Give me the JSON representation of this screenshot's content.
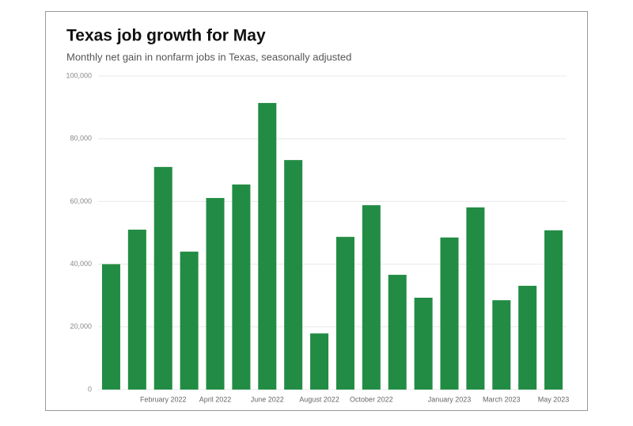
{
  "chart_data": {
    "type": "bar",
    "title": "Texas job growth for May",
    "subtitle": "Monthly net gain in nonfarm jobs in Texas, seasonally adjusted",
    "categories": [
      null,
      null,
      "February 2022",
      null,
      "April 2022",
      null,
      "June 2022",
      null,
      "August 2022",
      null,
      "October 2022",
      null,
      null,
      "January 2023",
      null,
      "March 2023",
      null,
      "May 2023"
    ],
    "values": [
      40000,
      51000,
      71000,
      44000,
      61100,
      65400,
      91400,
      73200,
      17900,
      48700,
      58800,
      36600,
      29300,
      48500,
      58100,
      28500,
      33100,
      50800
    ],
    "color": "#228c44",
    "ylim": [
      0,
      100000
    ],
    "yticks": [
      0,
      {
        "value": 20000,
        "label": "20,000"
      },
      {
        "value": 40000,
        "label": "40,000"
      },
      {
        "value": 60000,
        "label": "60,000"
      },
      {
        "value": 80000,
        "label": "80,000"
      },
      {
        "value": 100000,
        "label": "100,000"
      }
    ],
    "grid": true
  }
}
